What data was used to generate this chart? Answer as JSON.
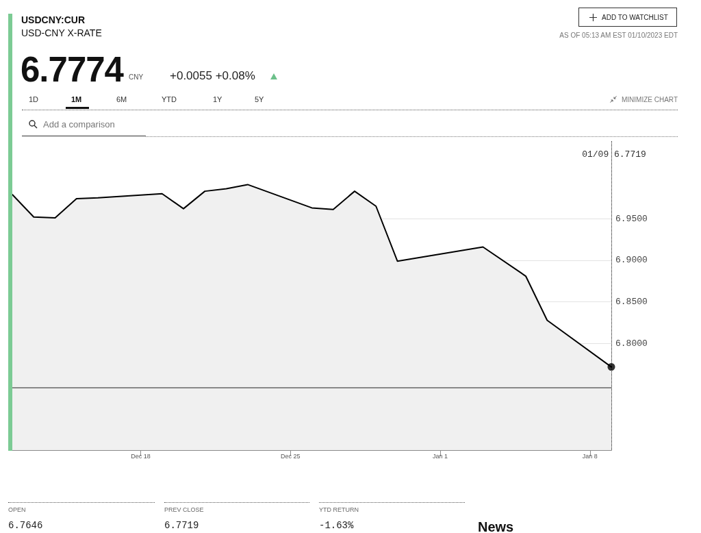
{
  "chart_data": {
    "type": "area",
    "title": "USDCNY:CUR",
    "subtitle": "USD-CNY X-RATE",
    "x": [
      "2022-12-12",
      "2022-12-13",
      "2022-12-14",
      "2022-12-15",
      "2022-12-16",
      "2022-12-19",
      "2022-12-20",
      "2022-12-21",
      "2022-12-22",
      "2022-12-23",
      "2022-12-26",
      "2022-12-27",
      "2022-12-28",
      "2022-12-29",
      "2022-12-30",
      "2023-01-03",
      "2023-01-05",
      "2023-01-06",
      "2023-01-09"
    ],
    "series": [
      {
        "color": "#000000",
        "values": [
          6.979,
          6.952,
          6.951,
          6.974,
          6.975,
          6.98,
          6.962,
          6.983,
          6.986,
          6.991,
          6.963,
          6.961,
          6.983,
          6.965,
          6.899,
          6.916,
          6.881,
          6.828,
          6.7719
        ]
      },
      {
        "type": "scatter",
        "color": "#000000",
        "marker": "circle",
        "x": [
          "2023-01-09"
        ],
        "values": [
          6.7719
        ]
      }
    ],
    "xlim": [
      "2022-12-12",
      "2023-01-09"
    ],
    "xticks": [
      {
        "value": "2022-12-18",
        "label": "Dec 18"
      },
      {
        "value": "2022-12-25",
        "label": "Dec 25"
      },
      {
        "value": "2023-01-01",
        "label": "Jan 1"
      },
      {
        "value": "2023-01-08",
        "label": "Jan 8"
      }
    ],
    "ylim": [
      6.672,
      7.044
    ],
    "yticks": [
      {
        "value": 6.8,
        "label": "6.8000"
      },
      {
        "value": 6.85,
        "label": "6.8500"
      },
      {
        "value": 6.9,
        "label": "6.9000"
      },
      {
        "value": 6.95,
        "label": "6.9500"
      }
    ],
    "grid": "y",
    "marker": "none",
    "ref_lines": [
      {
        "axis": "y",
        "value": 6.747,
        "color": "#666666"
      },
      {
        "axis": "x",
        "value": "2023-01-09",
        "label": "01/09 6.7719",
        "line_style": "dotted",
        "color": "#000000"
      }
    ],
    "annotations": [
      "6.7774",
      "CNY",
      "+0.0055 +0.08%",
      "ADD TO WATCHLIST",
      "AS OF 05:13 AM EST 01/10/2023 EDT",
      "1D",
      "1M",
      "6M",
      "YTD",
      "1Y",
      "5Y",
      "MINIMIZE CHART",
      "Add a comparison",
      "OPEN",
      "6.7646",
      "PREV CLOSE",
      "6.7719",
      "YTD RETURN",
      "-1.63%",
      "News"
    ]
  }
}
